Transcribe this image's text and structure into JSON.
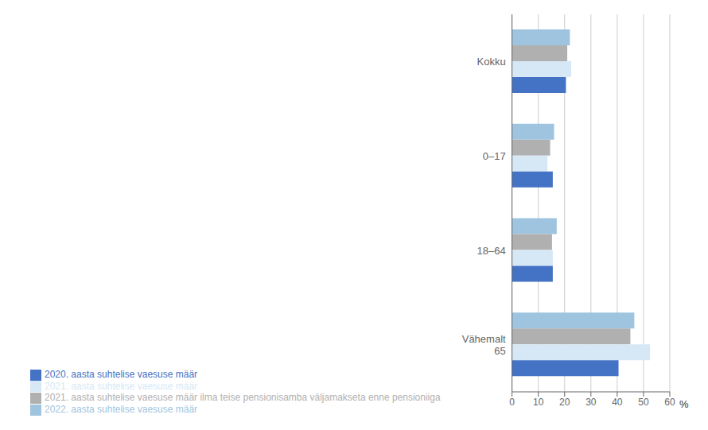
{
  "chart_data": {
    "type": "bar",
    "orientation": "horizontal",
    "categories": [
      "Vähemalt\n65",
      "18–64",
      "0–17",
      "Kokku"
    ],
    "series": [
      {
        "name": "2022. aasta suhtelise vaesuse määr",
        "color": "#9ec4e0",
        "values": [
          46.5,
          17.0,
          16.0,
          22.0
        ]
      },
      {
        "name": "2021. aasta suhtelise vaesuse määr ilma teise pensionisamba väljamakseta enne pensioniiga",
        "color": "#b0b0b0",
        "values": [
          45.0,
          15.2,
          14.5,
          21.0
        ]
      },
      {
        "name": "2021. aasta suhtelise vaesuse määr",
        "color": "#d6e8f5",
        "values": [
          52.5,
          15.5,
          13.5,
          22.5
        ]
      },
      {
        "name": "2020. aasta suhtelise vaesuse määr",
        "color": "#4472c4",
        "values": [
          40.5,
          15.5,
          15.5,
          20.5
        ]
      }
    ],
    "xlabel": "%",
    "xlim": [
      0,
      60
    ],
    "xticks": [
      0,
      10,
      20,
      30,
      40,
      50,
      60
    ],
    "grid": true,
    "legend": "bottom"
  }
}
